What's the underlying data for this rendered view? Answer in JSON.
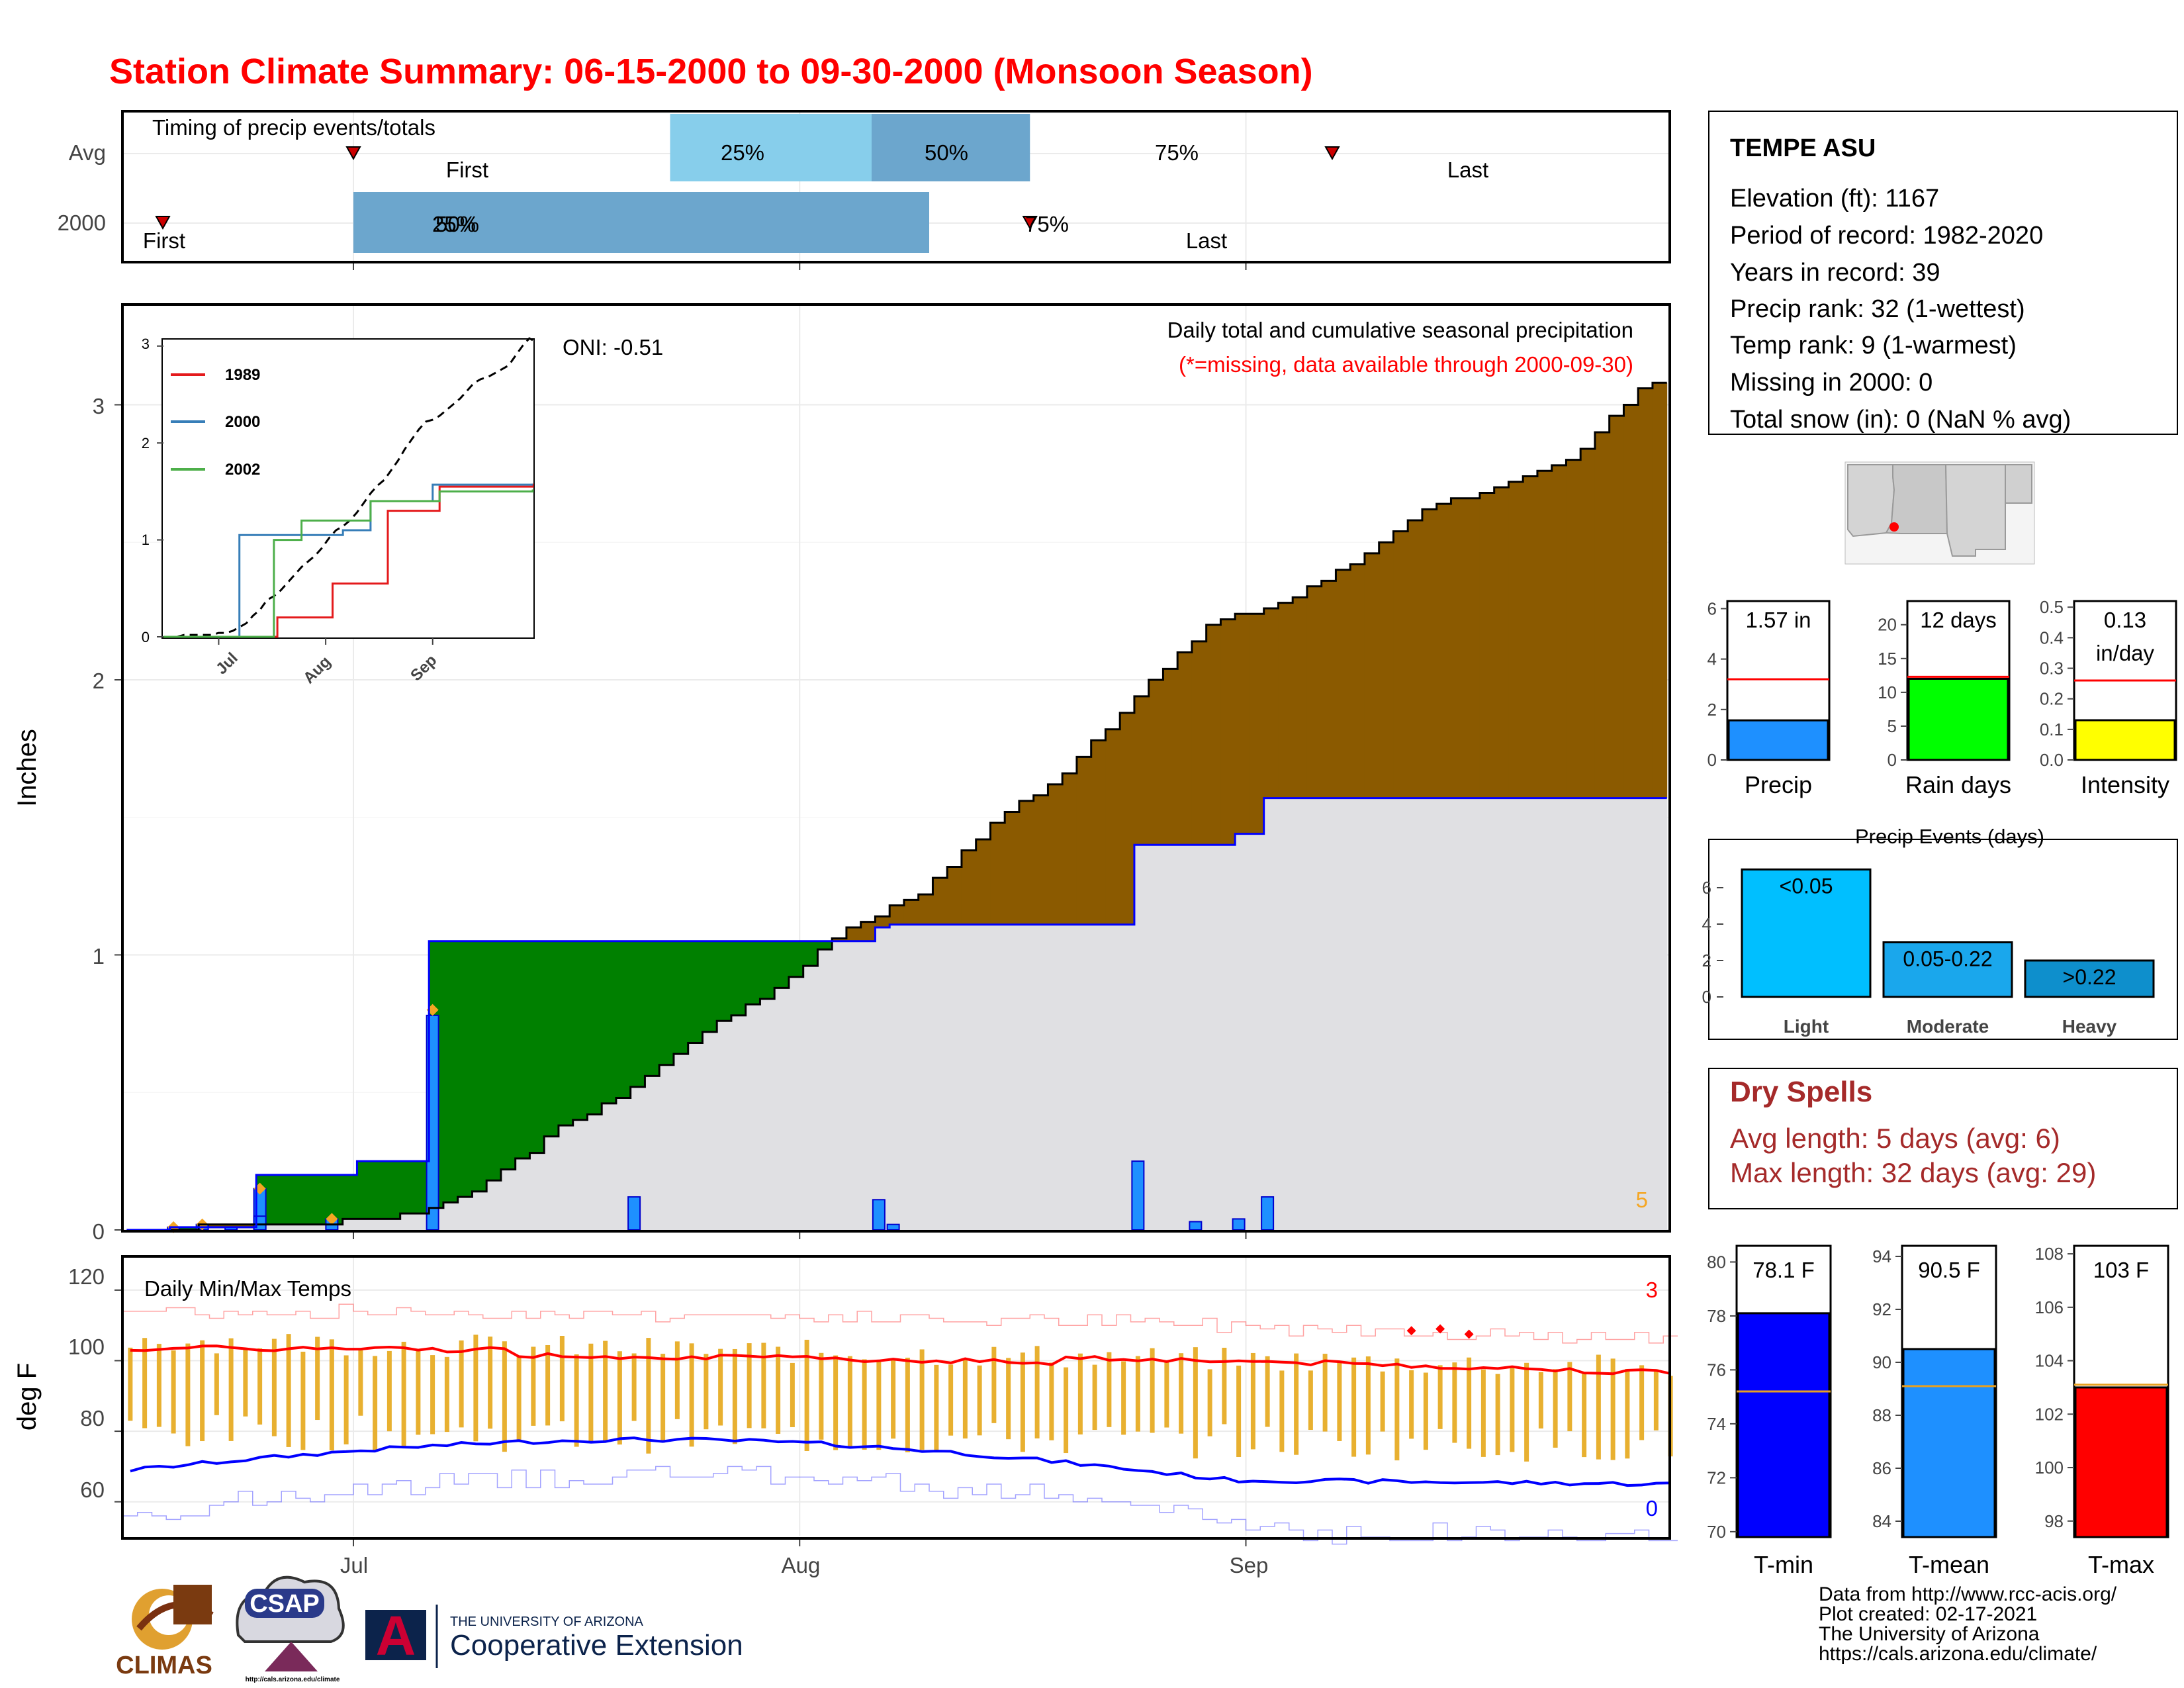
{
  "title": "Station Climate Summary: 06-15-2000 to 09-30-2000 (Monsoon Season)",
  "colors": {
    "title": "#ff0000",
    "cumulative_avg_fill": "#e0e0e3",
    "surplus_fill": "#008000",
    "deficit_fill": "#8b5a00",
    "daily_precip_bar": "#1e90ff",
    "daily_precip_outline": "#0000cd",
    "tmax_line": "#ff0000",
    "tmin_line": "#0000ff",
    "temp_bar": "#e8b030",
    "dry_spells": "#a52a2a"
  },
  "months": [
    "Jul",
    "Aug",
    "Sep"
  ],
  "timing": {
    "label": "Timing of precip events/totals",
    "rows": [
      "Avg",
      "2000"
    ],
    "first_label": "First",
    "last_label": "Last",
    "p25": "25%",
    "p50": "50%",
    "p75": "75%",
    "overlap_label": "25%",
    "avg": {
      "first_day": 16,
      "q25": 38,
      "q50": 52,
      "q75": 63,
      "last_day": 84
    },
    "y2000": {
      "first_day": 0,
      "q25": 16,
      "q50": 16,
      "q75": 56,
      "last_day": 63
    }
  },
  "precip": {
    "ylabel": "Inches",
    "annotation": "Daily total and cumulative seasonal precipitation",
    "missing_note": "(*=missing, data available through 2000-09-30)",
    "oni": "ONI: -0.51",
    "count_label": "5",
    "yticks": [
      "0",
      "1",
      "2",
      "3"
    ]
  },
  "inset": {
    "yticks": [
      "0",
      "1",
      "2",
      "3"
    ],
    "xticks": [
      "Jul",
      "Aug",
      "Sep"
    ],
    "legend": [
      {
        "name": "1989",
        "color": "#e41a1c"
      },
      {
        "name": "2000",
        "color": "#377eb8"
      },
      {
        "name": "2002",
        "color": "#4daf4a"
      }
    ]
  },
  "temps": {
    "label": "Daily Min/Max Temps",
    "ylabel": "deg F",
    "yticks": [
      "60",
      "80",
      "100",
      "120"
    ],
    "hot_count": "3",
    "cold_count": "0"
  },
  "station": {
    "name": "TEMPE ASU",
    "lines": [
      "Elevation (ft): 1167",
      "Period of record: 1982-2020",
      "Years in record: 39",
      "Precip rank: 32 (1-wettest)",
      "Temp rank: 9 (1-warmest)",
      "Missing in 2000: 0",
      "Total snow (in): 0 (NaN % avg)"
    ]
  },
  "mini_bars": [
    {
      "label": "Precip",
      "value_text": "1.57 in",
      "value": 1.57,
      "avg": 3.2,
      "ymax": 6.3,
      "ticks": [
        "0",
        "2",
        "4",
        "6"
      ],
      "tick_vals": [
        0,
        2,
        4,
        6
      ],
      "color": "#1e90ff"
    },
    {
      "label": "Rain days",
      "value_text": "12 days",
      "value": 12,
      "avg": 12.3,
      "ymax": 23.5,
      "ticks": [
        "0",
        "5",
        "10",
        "15",
        "20"
      ],
      "tick_vals": [
        0,
        5,
        10,
        15,
        20
      ],
      "color": "#00ff00"
    },
    {
      "label": "Intensity",
      "value_text": "0.13",
      "value_text2": "in/day",
      "value": 0.13,
      "avg": 0.26,
      "ymax": 0.52,
      "ticks": [
        "0.0",
        "0.1",
        "0.2",
        "0.3",
        "0.4",
        "0.5"
      ],
      "tick_vals": [
        0,
        0.1,
        0.2,
        0.3,
        0.4,
        0.5
      ],
      "color": "#ffff00"
    }
  ],
  "precip_events": {
    "title": "Precip Events (days)",
    "categories": [
      "Light",
      "Moderate",
      "Heavy"
    ],
    "bar_labels": [
      "<0.05",
      "0.05-0.22",
      ">0.22"
    ],
    "values": [
      7,
      3,
      2
    ],
    "colors": [
      "#00bfff",
      "#1aa7ec",
      "#0e8fcc"
    ],
    "ticks": [
      "0",
      "2",
      "4",
      "6"
    ],
    "tick_vals": [
      0,
      2,
      4,
      6
    ]
  },
  "dry_spells": {
    "title": "Dry Spells",
    "avg_line": "Avg length: 5 days (avg: 6)",
    "max_line": "Max length: 32 days (avg: 29)"
  },
  "temp_bars": [
    {
      "label": "T-min",
      "value_text": "78.1 F",
      "value": 78.1,
      "avg": 75.2,
      "ymin": 69.8,
      "ymax": 80.6,
      "ticks": [
        "70",
        "72",
        "74",
        "76",
        "78",
        "80"
      ],
      "tick_vals": [
        70,
        72,
        74,
        76,
        78,
        80
      ],
      "color": "#0000ff"
    },
    {
      "label": "T-mean",
      "value_text": "90.5 F",
      "value": 90.5,
      "avg": 89.1,
      "ymin": 83.4,
      "ymax": 94.4,
      "ticks": [
        "84",
        "86",
        "88",
        "90",
        "92",
        "94"
      ],
      "tick_vals": [
        84,
        86,
        88,
        90,
        92,
        94
      ],
      "color": "#1e90ff"
    },
    {
      "label": "T-max",
      "value_text": "103 F",
      "value": 103,
      "avg": 103.1,
      "ymin": 97.4,
      "ymax": 108.3,
      "ticks": [
        "98",
        "100",
        "102",
        "104",
        "106",
        "108"
      ],
      "tick_vals": [
        98,
        100,
        102,
        104,
        106,
        108
      ],
      "color": "#ff0000"
    }
  ],
  "footer": {
    "lines": [
      "Data from http://www.rcc-acis.org/",
      "Plot created: 02-17-2021",
      "The University of Arizona",
      "https://cals.arizona.edu/climate/"
    ],
    "climas": "CLIMAS",
    "csap": "CSAP",
    "csap_url": "http://cals.arizona.edu/climate",
    "ua_small": "THE UNIVERSITY OF ARIZONA",
    "ua_big": "Cooperative Extension",
    "ua_letter": "A"
  },
  "chart_data": [
    {
      "type": "bar",
      "title": "Timing of precip events/totals",
      "categories": [
        "Avg",
        "2000"
      ],
      "series": [
        {
          "name": "Avg",
          "values": {
            "first": "2000-07-01",
            "q25": "2000-07-23",
            "q50": "2000-08-06",
            "q75": "2000-08-17",
            "last": "2000-09-07"
          }
        },
        {
          "name": "2000",
          "values": {
            "first": "2000-06-15",
            "q25": "2000-07-01",
            "q50": "2000-07-01",
            "q75": "2000-08-10",
            "last": "2000-08-17"
          }
        }
      ]
    },
    {
      "type": "area",
      "title": "Daily total and cumulative seasonal precipitation",
      "ylabel": "Inches",
      "ylim": [
        0,
        3.4
      ],
      "x_start": "2000-06-15",
      "x_end": "2000-09-30",
      "daily_precip_2000": [
        {
          "date": "2000-06-18",
          "value": 0.01
        },
        {
          "date": "2000-06-20",
          "value": 0.02
        },
        {
          "date": "2000-06-22",
          "value": 0.01
        },
        {
          "date": "2000-06-24",
          "value": 0.15
        },
        {
          "date": "2000-06-24",
          "value": 0.05
        },
        {
          "date": "2000-06-29",
          "value": 0.04
        },
        {
          "date": "2000-07-06",
          "value": 0.78
        },
        {
          "date": "2000-07-20",
          "value": 0.12
        },
        {
          "date": "2000-08-06",
          "value": 0.11
        },
        {
          "date": "2000-08-07",
          "value": 0.02
        },
        {
          "date": "2000-08-24",
          "value": 0.25
        },
        {
          "date": "2000-08-28",
          "value": 0.03
        },
        {
          "date": "2000-08-31",
          "value": 0.04
        },
        {
          "date": "2000-09-02",
          "value": 0.12
        }
      ],
      "cumulative_2000": [
        {
          "date": "2000-06-15",
          "value": 0.0
        },
        {
          "date": "2000-06-18",
          "value": 0.01
        },
        {
          "date": "2000-06-24",
          "value": 0.2
        },
        {
          "date": "2000-07-01",
          "value": 0.25
        },
        {
          "date": "2000-07-06",
          "value": 1.05
        },
        {
          "date": "2000-08-06",
          "value": 1.1
        },
        {
          "date": "2000-08-07",
          "value": 1.11
        },
        {
          "date": "2000-08-24",
          "value": 1.4
        },
        {
          "date": "2000-08-31",
          "value": 1.44
        },
        {
          "date": "2000-09-02",
          "value": 1.57
        },
        {
          "date": "2000-09-30",
          "value": 1.57
        }
      ],
      "cumulative_avg": [
        {
          "date": "2000-06-15",
          "value": 0.0
        },
        {
          "date": "2000-06-20",
          "value": 0.01
        },
        {
          "date": "2000-06-25",
          "value": 0.01
        },
        {
          "date": "2000-06-30",
          "value": 0.03
        },
        {
          "date": "2000-07-05",
          "value": 0.06
        },
        {
          "date": "2000-07-10",
          "value": 0.17
        },
        {
          "date": "2000-07-15",
          "value": 0.37
        },
        {
          "date": "2000-07-20",
          "value": 0.51
        },
        {
          "date": "2000-07-25",
          "value": 0.72
        },
        {
          "date": "2000-07-30",
          "value": 0.88
        },
        {
          "date": "2000-08-04",
          "value": 1.1
        },
        {
          "date": "2000-08-09",
          "value": 1.22
        },
        {
          "date": "2000-08-14",
          "value": 1.48
        },
        {
          "date": "2000-08-19",
          "value": 1.66
        },
        {
          "date": "2000-08-24",
          "value": 1.94
        },
        {
          "date": "2000-08-29",
          "value": 2.2
        },
        {
          "date": "2000-09-03",
          "value": 2.28
        },
        {
          "date": "2000-09-08",
          "value": 2.42
        },
        {
          "date": "2000-09-13",
          "value": 2.62
        },
        {
          "date": "2000-09-18",
          "value": 2.7
        },
        {
          "date": "2000-09-23",
          "value": 2.8
        },
        {
          "date": "2000-09-28",
          "value": 3.05
        },
        {
          "date": "2000-09-30",
          "value": 3.1
        }
      ]
    },
    {
      "type": "line",
      "title": "",
      "ylim": [
        0,
        3.1
      ],
      "series": [
        {
          "name": "1989",
          "values": [
            [
              0,
              0
            ],
            [
              33,
              0.2
            ],
            [
              49,
              0.55
            ],
            [
              65,
              1.3
            ],
            [
              80,
              1.55
            ],
            [
              107,
              1.58
            ]
          ]
        },
        {
          "name": "2000",
          "values": [
            [
              0,
              0
            ],
            [
              22,
              1.05
            ],
            [
              52,
              1.1
            ],
            [
              60,
              1.4
            ],
            [
              78,
              1.57
            ],
            [
              107,
              1.57
            ]
          ]
        },
        {
          "name": "2002",
          "values": [
            [
              0,
              0
            ],
            [
              32,
              1.0
            ],
            [
              40,
              1.2
            ],
            [
              60,
              1.4
            ],
            [
              80,
              1.5
            ],
            [
              107,
              1.52
            ]
          ]
        }
      ]
    },
    {
      "type": "bar",
      "title": "Daily Min/Max Temps",
      "ylabel": "deg F",
      "ylim": [
        50,
        122
      ],
      "tmax_2000_range": [
        96,
        112
      ],
      "tmin_2000_range": [
        63,
        86
      ],
      "avg_tmax_range": [
        96,
        105
      ],
      "avg_tmin_range": [
        66,
        80
      ],
      "record_tmax_range": [
        105,
        117
      ],
      "record_tmin_range": [
        48,
        72
      ]
    },
    {
      "type": "bar",
      "categories": [
        "Precip",
        "Rain days",
        "Intensity"
      ],
      "values": [
        1.57,
        12,
        0.13
      ],
      "averages": [
        3.2,
        12.3,
        0.26
      ]
    },
    {
      "type": "bar",
      "title": "Precip Events (days)",
      "categories": [
        "Light",
        "Moderate",
        "Heavy"
      ],
      "values": [
        7,
        3,
        2
      ]
    },
    {
      "type": "bar",
      "categories": [
        "T-min",
        "T-mean",
        "T-max"
      ],
      "values": [
        78.1,
        90.5,
        103
      ],
      "averages": [
        75.2,
        89.1,
        103.1
      ]
    }
  ]
}
